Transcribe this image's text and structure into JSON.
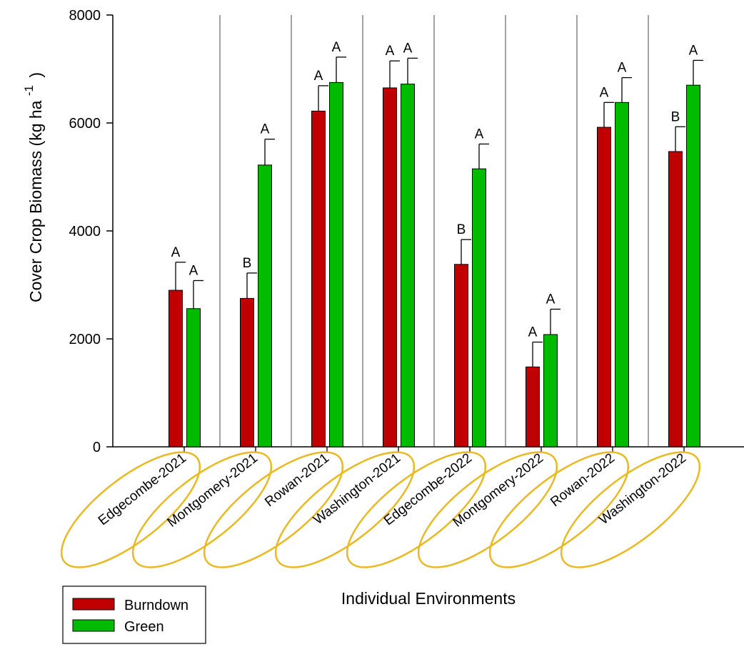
{
  "chart_data": {
    "type": "bar",
    "title": "",
    "xlabel": "Individual Environments",
    "ylabel": "Cover Crop Biomass (kg ha",
    "ylabel_superscript": "-1",
    "ylabel_close": ")",
    "ylim": [
      0,
      8000
    ],
    "yticks": [
      "0",
      "2000",
      "4000",
      "6000",
      "8000"
    ],
    "categories": [
      "Edgecombe-2021",
      "Montgomery-2021",
      "Rowan-2021",
      "Washington-2021",
      "Edgecombe-2022",
      "Montgomery-2022",
      "Rowan-2022",
      "Washington-2022"
    ],
    "series": [
      {
        "name": "Burndown",
        "color": "#c00000",
        "values": [
          2900,
          2750,
          6220,
          6650,
          3380,
          1480,
          5920,
          5470
        ],
        "error": [
          520,
          470,
          470,
          500,
          460,
          460,
          460,
          460
        ],
        "letters": [
          "A",
          "B",
          "A",
          "A",
          "B",
          "A",
          "A",
          "B"
        ]
      },
      {
        "name": "Green",
        "color": "#00bb00",
        "values": [
          2560,
          5220,
          6750,
          6720,
          5150,
          2080,
          6380,
          6700
        ],
        "error": [
          520,
          480,
          470,
          480,
          460,
          470,
          460,
          460
        ],
        "letters": [
          "A",
          "A",
          "A",
          "A",
          "A",
          "A",
          "A",
          "A"
        ]
      }
    ],
    "grid": false,
    "legend": "bottom-left",
    "category_highlight_color": "#e8b923"
  }
}
